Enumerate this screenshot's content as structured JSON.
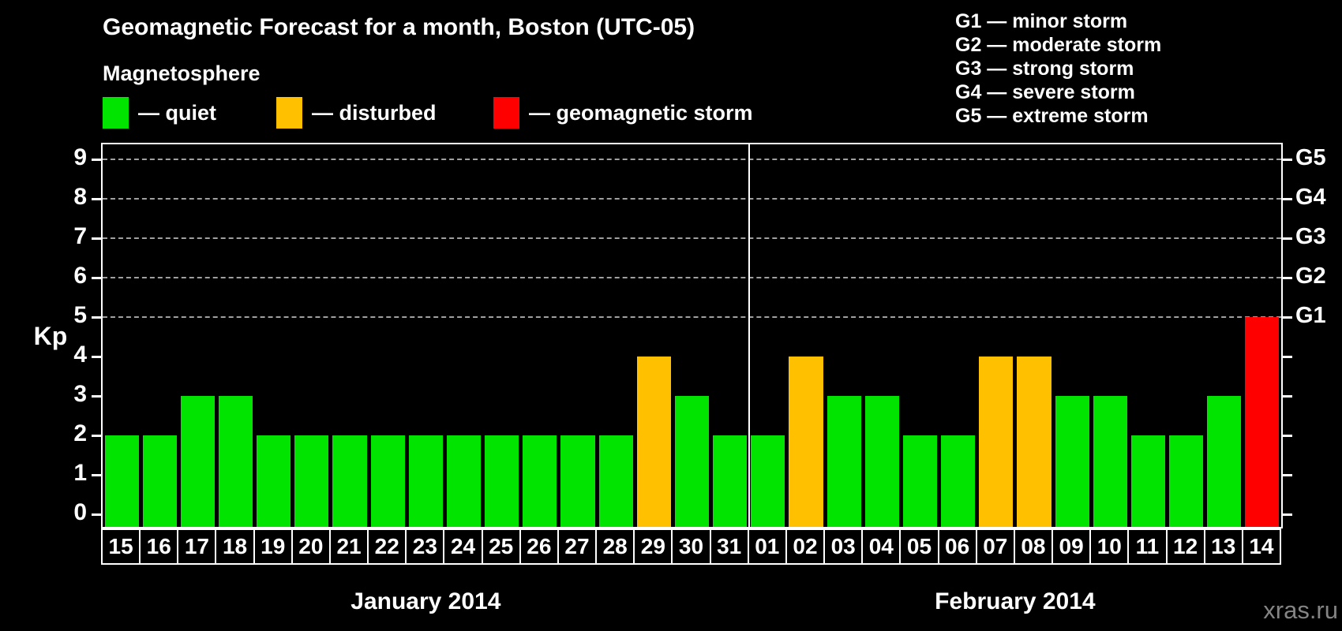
{
  "header": {
    "title": "Geomagnetic Forecast for a month, Boston (UTC-05)",
    "subtitle": "Magnetosphere",
    "legend": [
      {
        "status": "quiet",
        "label": "— quiet",
        "color": "#00E400"
      },
      {
        "status": "disturbed",
        "label": "— disturbed",
        "color": "#FFC000"
      },
      {
        "status": "storm",
        "label": "— geomagnetic storm",
        "color": "#FF0000"
      }
    ],
    "g_scale_legend": [
      "G1 — minor storm",
      "G2 — moderate storm",
      "G3 — strong storm",
      "G4 — severe storm",
      "G5 — extreme storm"
    ]
  },
  "watermark": "xras.ru",
  "chart_data": {
    "type": "bar",
    "title": "Geomagnetic Forecast for a month, Boston (UTC-05)",
    "ylabel": "Kp",
    "ylim": [
      0,
      9
    ],
    "yticks": [
      0,
      1,
      2,
      3,
      4,
      5,
      6,
      7,
      8,
      9
    ],
    "gridlines_kp": [
      5,
      6,
      7,
      8,
      9
    ],
    "grid": "dashed horizontal lines only at Kp 5-9",
    "legend_position": "top",
    "right_axis": [
      {
        "label": "G1",
        "kp": 5
      },
      {
        "label": "G2",
        "kp": 6
      },
      {
        "label": "G3",
        "kp": 7
      },
      {
        "label": "G4",
        "kp": 8
      },
      {
        "label": "G5",
        "kp": 9
      }
    ],
    "colors": {
      "quiet": "#00E400",
      "disturbed": "#FFC000",
      "storm": "#FF0000"
    },
    "months": [
      {
        "label": "January 2014",
        "days": [
          {
            "day": "15",
            "kp": 2,
            "status": "quiet"
          },
          {
            "day": "16",
            "kp": 2,
            "status": "quiet"
          },
          {
            "day": "17",
            "kp": 3,
            "status": "quiet"
          },
          {
            "day": "18",
            "kp": 3,
            "status": "quiet"
          },
          {
            "day": "19",
            "kp": 2,
            "status": "quiet"
          },
          {
            "day": "20",
            "kp": 2,
            "status": "quiet"
          },
          {
            "day": "21",
            "kp": 2,
            "status": "quiet"
          },
          {
            "day": "22",
            "kp": 2,
            "status": "quiet"
          },
          {
            "day": "23",
            "kp": 2,
            "status": "quiet"
          },
          {
            "day": "24",
            "kp": 2,
            "status": "quiet"
          },
          {
            "day": "25",
            "kp": 2,
            "status": "quiet"
          },
          {
            "day": "26",
            "kp": 2,
            "status": "quiet"
          },
          {
            "day": "27",
            "kp": 2,
            "status": "quiet"
          },
          {
            "day": "28",
            "kp": 2,
            "status": "quiet"
          },
          {
            "day": "29",
            "kp": 4,
            "status": "disturbed"
          },
          {
            "day": "30",
            "kp": 3,
            "status": "quiet"
          },
          {
            "day": "31",
            "kp": 2,
            "status": "quiet"
          }
        ]
      },
      {
        "label": "February 2014",
        "days": [
          {
            "day": "01",
            "kp": 2,
            "status": "quiet"
          },
          {
            "day": "02",
            "kp": 4,
            "status": "disturbed"
          },
          {
            "day": "03",
            "kp": 3,
            "status": "quiet"
          },
          {
            "day": "04",
            "kp": 3,
            "status": "quiet"
          },
          {
            "day": "05",
            "kp": 2,
            "status": "quiet"
          },
          {
            "day": "06",
            "kp": 2,
            "status": "quiet"
          },
          {
            "day": "07",
            "kp": 4,
            "status": "disturbed"
          },
          {
            "day": "08",
            "kp": 4,
            "status": "disturbed"
          },
          {
            "day": "09",
            "kp": 3,
            "status": "quiet"
          },
          {
            "day": "10",
            "kp": 3,
            "status": "quiet"
          },
          {
            "day": "11",
            "kp": 2,
            "status": "quiet"
          },
          {
            "day": "12",
            "kp": 2,
            "status": "quiet"
          },
          {
            "day": "13",
            "kp": 3,
            "status": "quiet"
          },
          {
            "day": "14",
            "kp": 5,
            "status": "storm"
          }
        ]
      }
    ]
  }
}
